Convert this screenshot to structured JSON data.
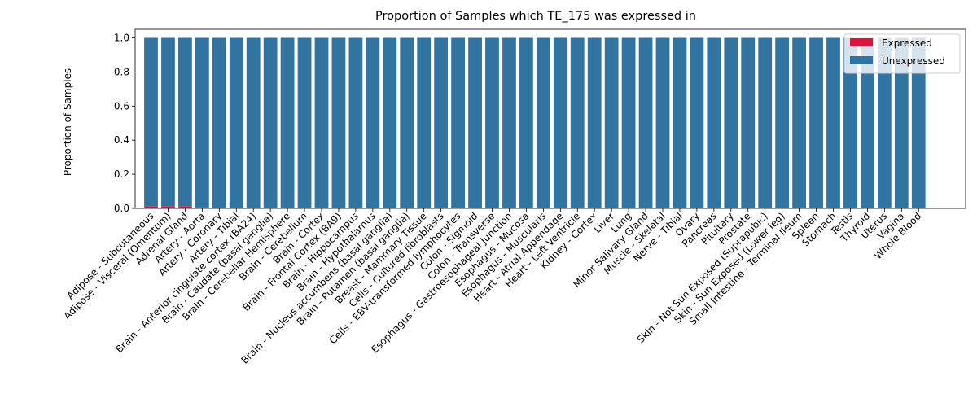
{
  "chart_data": {
    "type": "bar",
    "stacked": true,
    "title": "Proportion of Samples which TE_175 was expressed in",
    "xlabel": "",
    "ylabel": "Proportion of Samples",
    "ylim": [
      0,
      1.05
    ],
    "yticks": [
      "0.0",
      "0.2",
      "0.4",
      "0.6",
      "0.8",
      "1.0"
    ],
    "legend_position": "top-right",
    "grid": false,
    "categories": [
      "Adipose - Subcutaneous",
      "Adipose - Visceral (Omentum)",
      "Adrenal Gland",
      "Artery - Aorta",
      "Artery - Coronary",
      "Artery - Tibial",
      "Brain - Anterior cingulate cortex (BA24)",
      "Brain - Caudate (basal ganglia)",
      "Brain - Cerebellar Hemisphere",
      "Brain - Cerebellum",
      "Brain - Cortex",
      "Brain - Frontal Cortex (BA9)",
      "Brain - Hippocampus",
      "Brain - Hypothalamus",
      "Brain - Nucleus accumbens (basal ganglia)",
      "Brain - Putamen (basal ganglia)",
      "Breast - Mammary Tissue",
      "Cells - Cultured fibroblasts",
      "Cells - EBV-transformed lymphocytes",
      "Colon - Sigmoid",
      "Colon - Transverse",
      "Esophagus - Gastroesophageal Junction",
      "Esophagus - Mucosa",
      "Esophagus - Muscularis",
      "Heart - Atrial Appendage",
      "Heart - Left Ventricle",
      "Kidney - Cortex",
      "Liver",
      "Lung",
      "Minor Salivary Gland",
      "Muscle - Skeletal",
      "Nerve - Tibial",
      "Ovary",
      "Pancreas",
      "Pituitary",
      "Prostate",
      "Skin - Not Sun Exposed (Suprapubic)",
      "Skin - Sun Exposed (Lower leg)",
      "Small Intestine - Terminal Ileum",
      "Spleen",
      "Stomach",
      "Testis",
      "Thyroid",
      "Uterus",
      "Vagina",
      "Whole Blood"
    ],
    "series": [
      {
        "name": "Expressed",
        "color": "#dc143c",
        "values": [
          0.01,
          0.01,
          0.01,
          0.005,
          0,
          0,
          0,
          0,
          0,
          0,
          0,
          0,
          0,
          0,
          0,
          0,
          0,
          0,
          0,
          0,
          0,
          0,
          0,
          0,
          0,
          0,
          0,
          0,
          0,
          0,
          0,
          0,
          0,
          0,
          0,
          0,
          0,
          0,
          0,
          0,
          0,
          0,
          0,
          0,
          0,
          0
        ]
      },
      {
        "name": "Unexpressed",
        "color": "#3274a1",
        "values": [
          0.99,
          0.99,
          0.99,
          0.995,
          1,
          1,
          1,
          1,
          1,
          1,
          1,
          1,
          1,
          1,
          1,
          1,
          1,
          1,
          1,
          1,
          1,
          1,
          1,
          1,
          1,
          1,
          1,
          1,
          1,
          1,
          1,
          1,
          1,
          1,
          1,
          1,
          1,
          1,
          1,
          1,
          1,
          1,
          1,
          1,
          1,
          1
        ]
      }
    ]
  }
}
